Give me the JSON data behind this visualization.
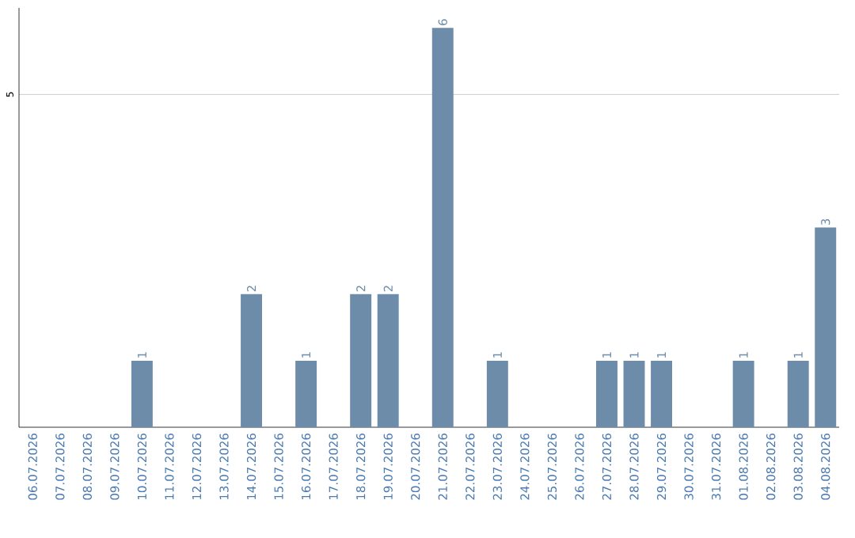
{
  "chart_data": {
    "type": "bar",
    "categories": [
      "06.07.2026",
      "07.07.2026",
      "08.07.2026",
      "09.07.2026",
      "10.07.2026",
      "11.07.2026",
      "12.07.2026",
      "13.07.2026",
      "14.07.2026",
      "15.07.2026",
      "16.07.2026",
      "17.07.2026",
      "18.07.2026",
      "19.07.2026",
      "20.07.2026",
      "21.07.2026",
      "22.07.2026",
      "23.07.2026",
      "24.07.2026",
      "25.07.2026",
      "26.07.2026",
      "27.07.2026",
      "28.07.2026",
      "29.07.2026",
      "30.07.2026",
      "31.07.2026",
      "01.08.2026",
      "02.08.2026",
      "03.08.2026",
      "04.08.2026"
    ],
    "values": [
      0,
      0,
      0,
      0,
      1,
      0,
      0,
      0,
      2,
      0,
      1,
      0,
      2,
      2,
      0,
      6,
      0,
      1,
      0,
      0,
      0,
      1,
      1,
      1,
      0,
      0,
      1,
      0,
      1,
      3
    ],
    "value_labels": [
      null,
      null,
      null,
      null,
      "1",
      null,
      null,
      null,
      "2",
      null,
      "1",
      null,
      "2",
      "2",
      null,
      "6",
      null,
      "1",
      null,
      null,
      null,
      "1",
      "1",
      "1",
      null,
      null,
      "1",
      null,
      "1",
      "3"
    ],
    "color": "#6d8caa",
    "ylim": [
      0,
      6.3
    ],
    "yticks": [
      5
    ],
    "grid": "y"
  }
}
